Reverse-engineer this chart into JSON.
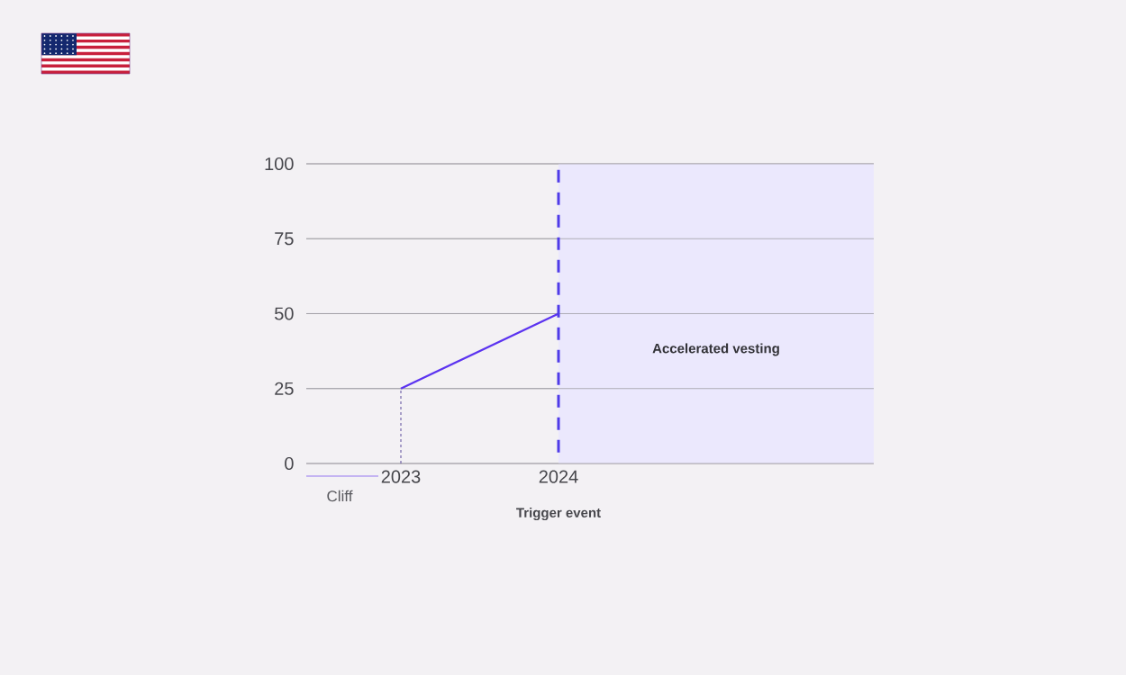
{
  "chart_data": {
    "type": "line",
    "x": [
      2023,
      2024
    ],
    "series": [
      {
        "name": null,
        "color": "#5b33f0",
        "values": [
          25,
          50
        ]
      },
      {
        "name": null,
        "color": "#5a4a9a",
        "x": [
          2023,
          2023
        ],
        "values": [
          0,
          25
        ],
        "line_style": "dashed"
      }
    ],
    "xlim": [
      2022.4,
      2026
    ],
    "xticks": [
      2023,
      2024
    ],
    "ylim": [
      0,
      100
    ],
    "yticks": [
      0,
      25,
      50,
      75,
      100
    ],
    "grid": "y",
    "marker": "none",
    "line_style": "solid",
    "ref_lines": [
      {
        "axis": "x",
        "value": 2024,
        "color": "#4f3be8",
        "line_style": "dashed"
      }
    ],
    "bands": [
      {
        "axis": "x",
        "from": 2024,
        "to": 2026,
        "label": "Accelerated vesting",
        "color": "#ebe8fd"
      }
    ],
    "annotations": [
      "Cliff",
      "Trigger event"
    ]
  }
}
